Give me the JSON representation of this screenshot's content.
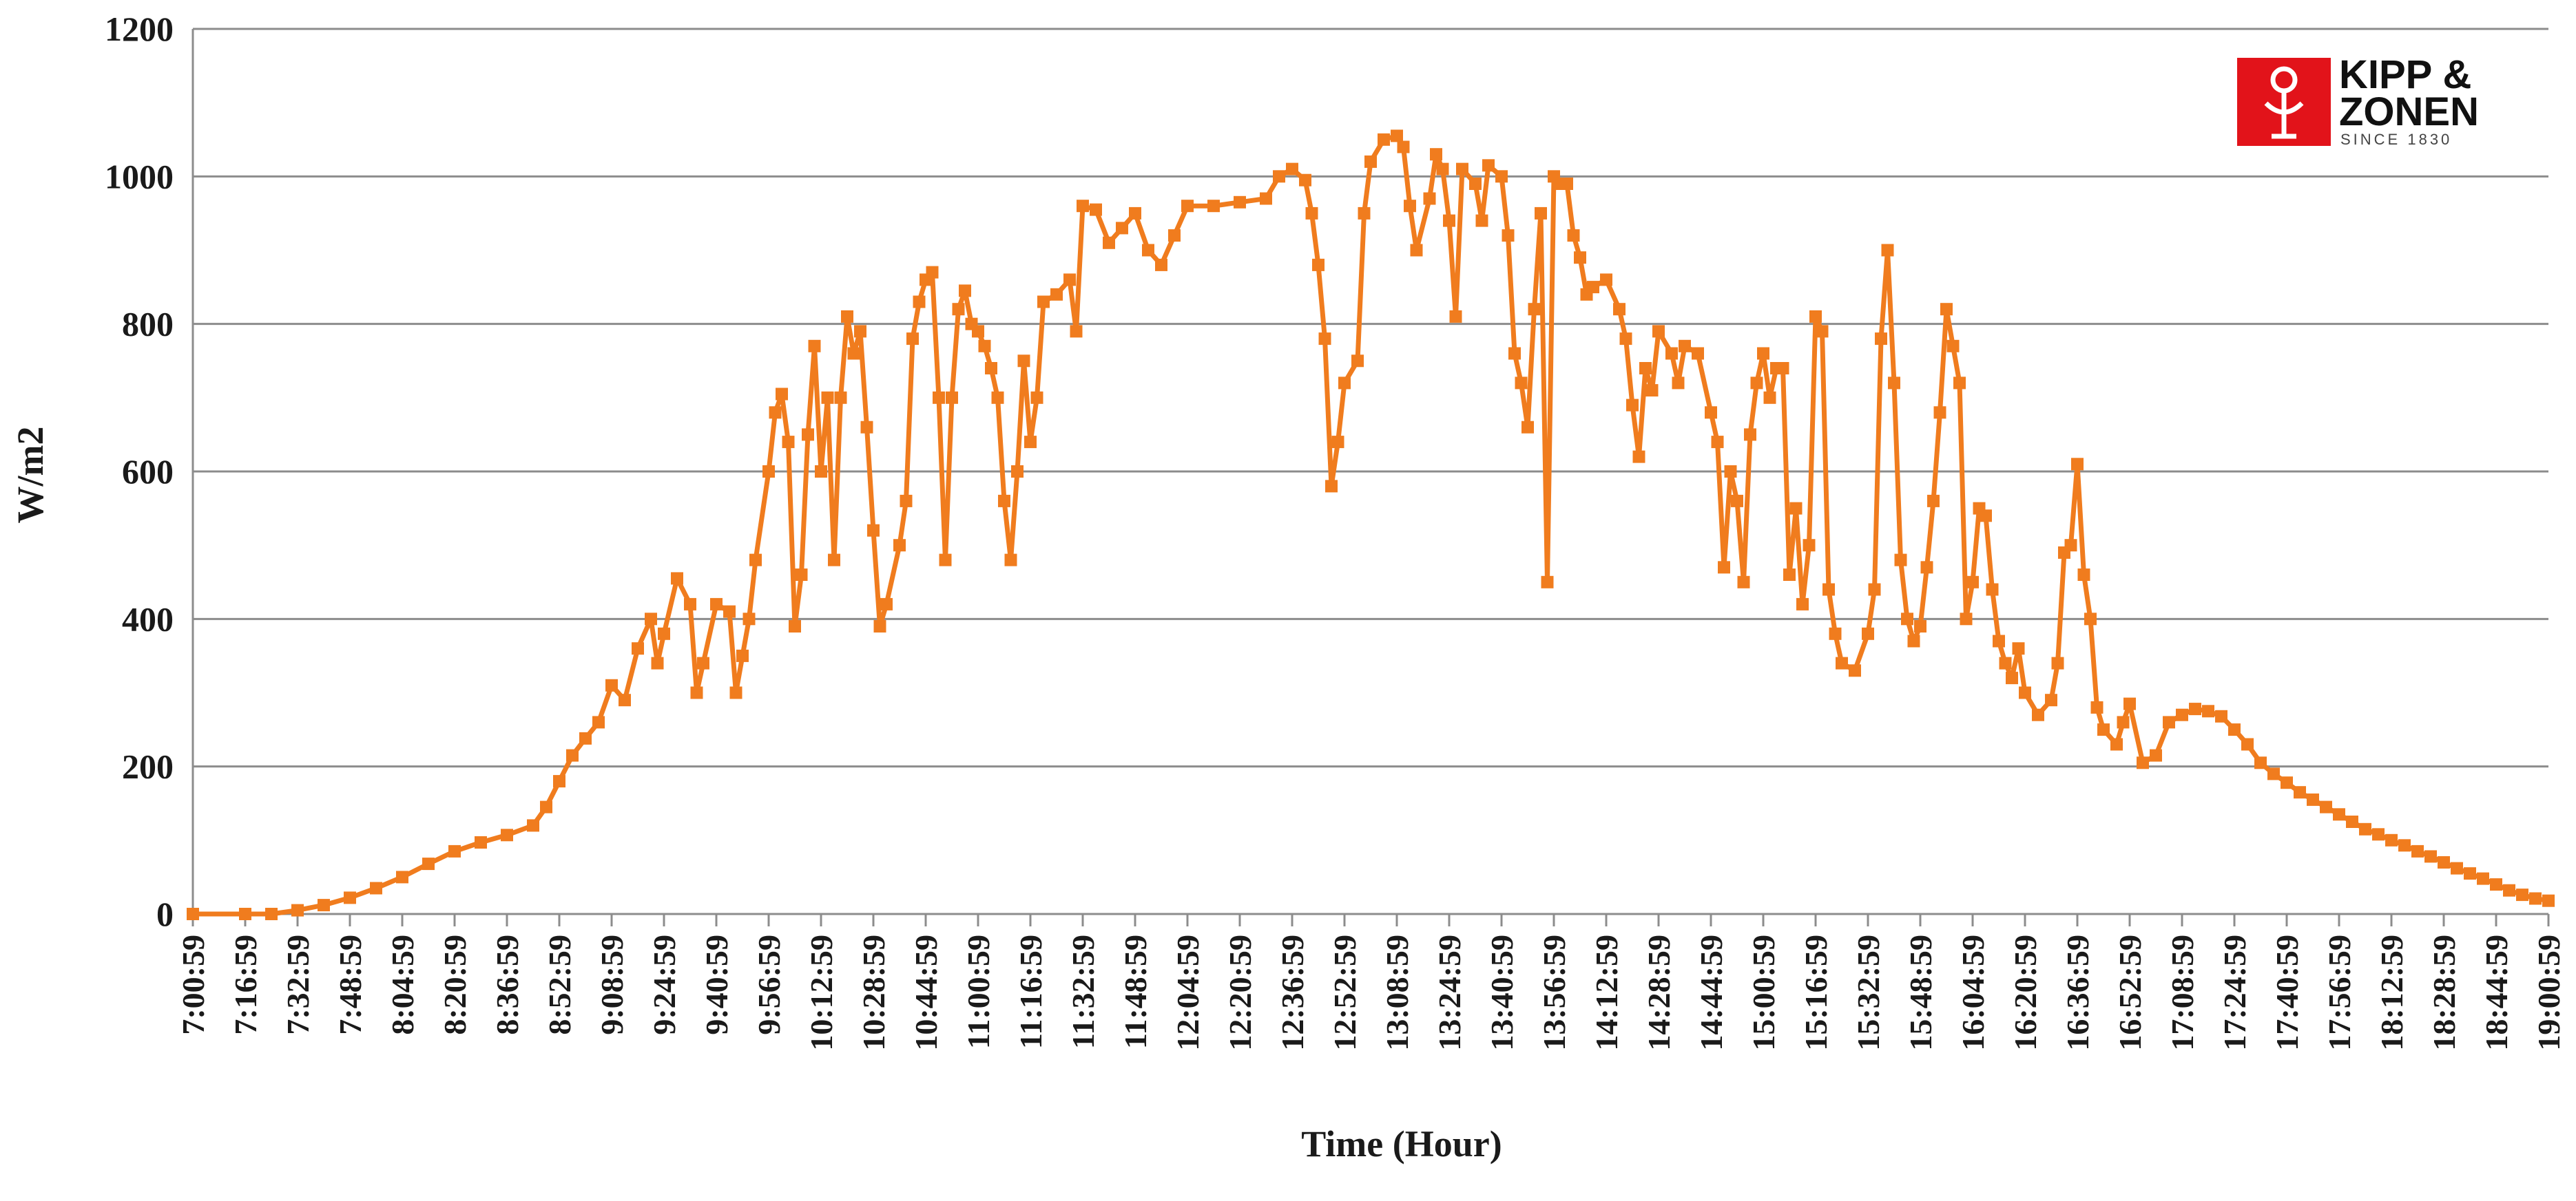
{
  "chart_data": {
    "type": "line",
    "title": "",
    "xlabel": "Time (Hour)",
    "ylabel": "W/m2",
    "ylim": [
      0,
      1200
    ],
    "y_ticks": [
      "0",
      "200",
      "400",
      "600",
      "800",
      "1000",
      "1200"
    ],
    "x_ticks": [
      "7:00:59",
      "7:16:59",
      "7:32:59",
      "7:48:59",
      "8:04:59",
      "8:20:59",
      "8:36:59",
      "8:52:59",
      "9:08:59",
      "9:24:59",
      "9:40:59",
      "9:56:59",
      "10:12:59",
      "10:28:59",
      "10:44:59",
      "11:00:59",
      "11:16:59",
      "11:32:59",
      "11:48:59",
      "12:04:59",
      "12:20:59",
      "12:36:59",
      "12:52:59",
      "13:08:59",
      "13:24:59",
      "13:40:59",
      "13:56:59",
      "14:12:59",
      "14:28:59",
      "14:44:59",
      "15:00:59",
      "15:16:59",
      "15:32:59",
      "15:48:59",
      "16:04:59",
      "16:20:59",
      "16:36:59",
      "16:52:59",
      "17:08:59",
      "17:24:59",
      "17:40:59",
      "17:56:59",
      "18:12:59",
      "18:28:59",
      "18:44:59",
      "19:00:59"
    ],
    "grid": "horizontal",
    "legend": "none",
    "series": [
      {
        "color": "#f07c1e",
        "marker": "square",
        "points": [
          [
            "7:00:59",
            0
          ],
          [
            "7:16:59",
            0
          ],
          [
            "7:24:59",
            0
          ],
          [
            "7:32:59",
            5
          ],
          [
            "7:40:59",
            12
          ],
          [
            "7:48:59",
            22
          ],
          [
            "7:56:59",
            35
          ],
          [
            "8:04:59",
            50
          ],
          [
            "8:12:59",
            68
          ],
          [
            "8:20:59",
            85
          ],
          [
            "8:28:59",
            97
          ],
          [
            "8:36:59",
            107
          ],
          [
            "8:44:59",
            120
          ],
          [
            "8:48:59",
            145
          ],
          [
            "8:52:59",
            180
          ],
          [
            "8:56:59",
            215
          ],
          [
            "9:00:59",
            238
          ],
          [
            "9:04:59",
            260
          ],
          [
            "9:08:59",
            310
          ],
          [
            "9:12:59",
            290
          ],
          [
            "9:16:59",
            360
          ],
          [
            "9:20:59",
            400
          ],
          [
            "9:22:59",
            340
          ],
          [
            "9:24:59",
            380
          ],
          [
            "9:28:59",
            455
          ],
          [
            "9:32:59",
            420
          ],
          [
            "9:34:59",
            300
          ],
          [
            "9:36:59",
            340
          ],
          [
            "9:40:59",
            420
          ],
          [
            "9:44:59",
            410
          ],
          [
            "9:46:59",
            300
          ],
          [
            "9:48:59",
            350
          ],
          [
            "9:50:59",
            400
          ],
          [
            "9:52:59",
            480
          ],
          [
            "9:56:59",
            600
          ],
          [
            "9:58:59",
            680
          ],
          [
            "10:00:59",
            705
          ],
          [
            "10:02:59",
            640
          ],
          [
            "10:04:59",
            390
          ],
          [
            "10:06:59",
            460
          ],
          [
            "10:08:59",
            650
          ],
          [
            "10:10:59",
            770
          ],
          [
            "10:12:59",
            600
          ],
          [
            "10:14:59",
            700
          ],
          [
            "10:16:59",
            480
          ],
          [
            "10:18:59",
            700
          ],
          [
            "10:20:59",
            810
          ],
          [
            "10:22:59",
            760
          ],
          [
            "10:24:59",
            790
          ],
          [
            "10:26:59",
            660
          ],
          [
            "10:28:59",
            520
          ],
          [
            "10:30:59",
            390
          ],
          [
            "10:32:59",
            420
          ],
          [
            "10:36:59",
            500
          ],
          [
            "10:38:59",
            560
          ],
          [
            "10:40:59",
            780
          ],
          [
            "10:42:59",
            830
          ],
          [
            "10:44:59",
            860
          ],
          [
            "10:46:59",
            870
          ],
          [
            "10:48:59",
            700
          ],
          [
            "10:50:59",
            480
          ],
          [
            "10:52:59",
            700
          ],
          [
            "10:54:59",
            820
          ],
          [
            "10:56:59",
            845
          ],
          [
            "10:58:59",
            800
          ],
          [
            "11:00:59",
            790
          ],
          [
            "11:02:59",
            770
          ],
          [
            "11:04:59",
            740
          ],
          [
            "11:06:59",
            700
          ],
          [
            "11:08:59",
            560
          ],
          [
            "11:10:59",
            480
          ],
          [
            "11:12:59",
            600
          ],
          [
            "11:14:59",
            750
          ],
          [
            "11:16:59",
            640
          ],
          [
            "11:18:59",
            700
          ],
          [
            "11:20:59",
            830
          ],
          [
            "11:24:59",
            840
          ],
          [
            "11:28:59",
            860
          ],
          [
            "11:30:59",
            790
          ],
          [
            "11:32:59",
            960
          ],
          [
            "11:36:59",
            955
          ],
          [
            "11:40:59",
            910
          ],
          [
            "11:44:59",
            930
          ],
          [
            "11:48:59",
            950
          ],
          [
            "11:52:59",
            900
          ],
          [
            "11:56:59",
            880
          ],
          [
            "12:00:59",
            920
          ],
          [
            "12:04:59",
            960
          ],
          [
            "12:12:59",
            960
          ],
          [
            "12:20:59",
            965
          ],
          [
            "12:28:59",
            970
          ],
          [
            "12:32:59",
            1000
          ],
          [
            "12:36:59",
            1010
          ],
          [
            "12:40:59",
            995
          ],
          [
            "12:42:59",
            950
          ],
          [
            "12:44:59",
            880
          ],
          [
            "12:46:59",
            780
          ],
          [
            "12:48:59",
            580
          ],
          [
            "12:50:59",
            640
          ],
          [
            "12:52:59",
            720
          ],
          [
            "12:56:59",
            750
          ],
          [
            "12:58:59",
            950
          ],
          [
            "13:00:59",
            1020
          ],
          [
            "13:04:59",
            1050
          ],
          [
            "13:08:59",
            1055
          ],
          [
            "13:10:59",
            1040
          ],
          [
            "13:12:59",
            960
          ],
          [
            "13:14:59",
            900
          ],
          [
            "13:18:59",
            970
          ],
          [
            "13:20:59",
            1030
          ],
          [
            "13:22:59",
            1010
          ],
          [
            "13:24:59",
            940
          ],
          [
            "13:26:59",
            810
          ],
          [
            "13:28:59",
            1010
          ],
          [
            "13:32:59",
            990
          ],
          [
            "13:34:59",
            940
          ],
          [
            "13:36:59",
            1015
          ],
          [
            "13:40:59",
            1000
          ],
          [
            "13:42:59",
            920
          ],
          [
            "13:44:59",
            760
          ],
          [
            "13:46:59",
            720
          ],
          [
            "13:48:59",
            660
          ],
          [
            "13:50:59",
            820
          ],
          [
            "13:52:59",
            950
          ],
          [
            "13:54:59",
            450
          ],
          [
            "13:56:59",
            1000
          ],
          [
            "13:58:59",
            990
          ],
          [
            "14:00:59",
            990
          ],
          [
            "14:02:59",
            920
          ],
          [
            "14:04:59",
            890
          ],
          [
            "14:06:59",
            840
          ],
          [
            "14:08:59",
            850
          ],
          [
            "14:12:59",
            860
          ],
          [
            "14:16:59",
            820
          ],
          [
            "14:18:59",
            780
          ],
          [
            "14:20:59",
            690
          ],
          [
            "14:22:59",
            620
          ],
          [
            "14:24:59",
            740
          ],
          [
            "14:26:59",
            710
          ],
          [
            "14:28:59",
            790
          ],
          [
            "14:32:59",
            760
          ],
          [
            "14:34:59",
            720
          ],
          [
            "14:36:59",
            770
          ],
          [
            "14:40:59",
            760
          ],
          [
            "14:44:59",
            680
          ],
          [
            "14:46:59",
            640
          ],
          [
            "14:48:59",
            470
          ],
          [
            "14:50:59",
            600
          ],
          [
            "14:52:59",
            560
          ],
          [
            "14:54:59",
            450
          ],
          [
            "14:56:59",
            650
          ],
          [
            "14:58:59",
            720
          ],
          [
            "15:00:59",
            760
          ],
          [
            "15:02:59",
            700
          ],
          [
            "15:04:59",
            740
          ],
          [
            "15:06:59",
            740
          ],
          [
            "15:08:59",
            460
          ],
          [
            "15:10:59",
            550
          ],
          [
            "15:12:59",
            420
          ],
          [
            "15:14:59",
            500
          ],
          [
            "15:16:59",
            810
          ],
          [
            "15:18:59",
            790
          ],
          [
            "15:20:59",
            440
          ],
          [
            "15:22:59",
            380
          ],
          [
            "15:24:59",
            340
          ],
          [
            "15:28:59",
            330
          ],
          [
            "15:32:59",
            380
          ],
          [
            "15:34:59",
            440
          ],
          [
            "15:36:59",
            780
          ],
          [
            "15:38:59",
            900
          ],
          [
            "15:40:59",
            720
          ],
          [
            "15:42:59",
            480
          ],
          [
            "15:44:59",
            400
          ],
          [
            "15:46:59",
            370
          ],
          [
            "15:48:59",
            390
          ],
          [
            "15:50:59",
            470
          ],
          [
            "15:52:59",
            560
          ],
          [
            "15:54:59",
            680
          ],
          [
            "15:56:59",
            820
          ],
          [
            "15:58:59",
            770
          ],
          [
            "16:00:59",
            720
          ],
          [
            "16:02:59",
            400
          ],
          [
            "16:04:59",
            450
          ],
          [
            "16:06:59",
            550
          ],
          [
            "16:08:59",
            540
          ],
          [
            "16:10:59",
            440
          ],
          [
            "16:12:59",
            370
          ],
          [
            "16:14:59",
            340
          ],
          [
            "16:16:59",
            320
          ],
          [
            "16:18:59",
            360
          ],
          [
            "16:20:59",
            300
          ],
          [
            "16:24:59",
            270
          ],
          [
            "16:28:59",
            290
          ],
          [
            "16:30:59",
            340
          ],
          [
            "16:32:59",
            490
          ],
          [
            "16:34:59",
            500
          ],
          [
            "16:36:59",
            610
          ],
          [
            "16:38:59",
            460
          ],
          [
            "16:40:59",
            400
          ],
          [
            "16:42:59",
            280
          ],
          [
            "16:44:59",
            250
          ],
          [
            "16:48:59",
            230
          ],
          [
            "16:50:59",
            260
          ],
          [
            "16:52:59",
            285
          ],
          [
            "16:56:59",
            205
          ],
          [
            "17:00:59",
            215
          ],
          [
            "17:04:59",
            260
          ],
          [
            "17:08:59",
            270
          ],
          [
            "17:12:59",
            278
          ],
          [
            "17:16:59",
            275
          ],
          [
            "17:20:59",
            268
          ],
          [
            "17:24:59",
            250
          ],
          [
            "17:28:59",
            230
          ],
          [
            "17:32:59",
            205
          ],
          [
            "17:36:59",
            190
          ],
          [
            "17:40:59",
            178
          ],
          [
            "17:44:59",
            165
          ],
          [
            "17:48:59",
            155
          ],
          [
            "17:52:59",
            145
          ],
          [
            "17:56:59",
            135
          ],
          [
            "18:00:59",
            125
          ],
          [
            "18:04:59",
            115
          ],
          [
            "18:08:59",
            108
          ],
          [
            "18:12:59",
            100
          ],
          [
            "18:16:59",
            93
          ],
          [
            "18:20:59",
            85
          ],
          [
            "18:24:59",
            78
          ],
          [
            "18:28:59",
            70
          ],
          [
            "18:32:59",
            62
          ],
          [
            "18:36:59",
            55
          ],
          [
            "18:40:59",
            48
          ],
          [
            "18:44:59",
            40
          ],
          [
            "18:48:59",
            32
          ],
          [
            "18:52:59",
            26
          ],
          [
            "18:56:59",
            21
          ],
          [
            "19:00:59",
            18
          ]
        ]
      }
    ]
  },
  "logo": {
    "line1": "KIPP &",
    "line2": "ZONEN",
    "line3": "SINCE 1830",
    "brand_color": "#e2131a"
  }
}
